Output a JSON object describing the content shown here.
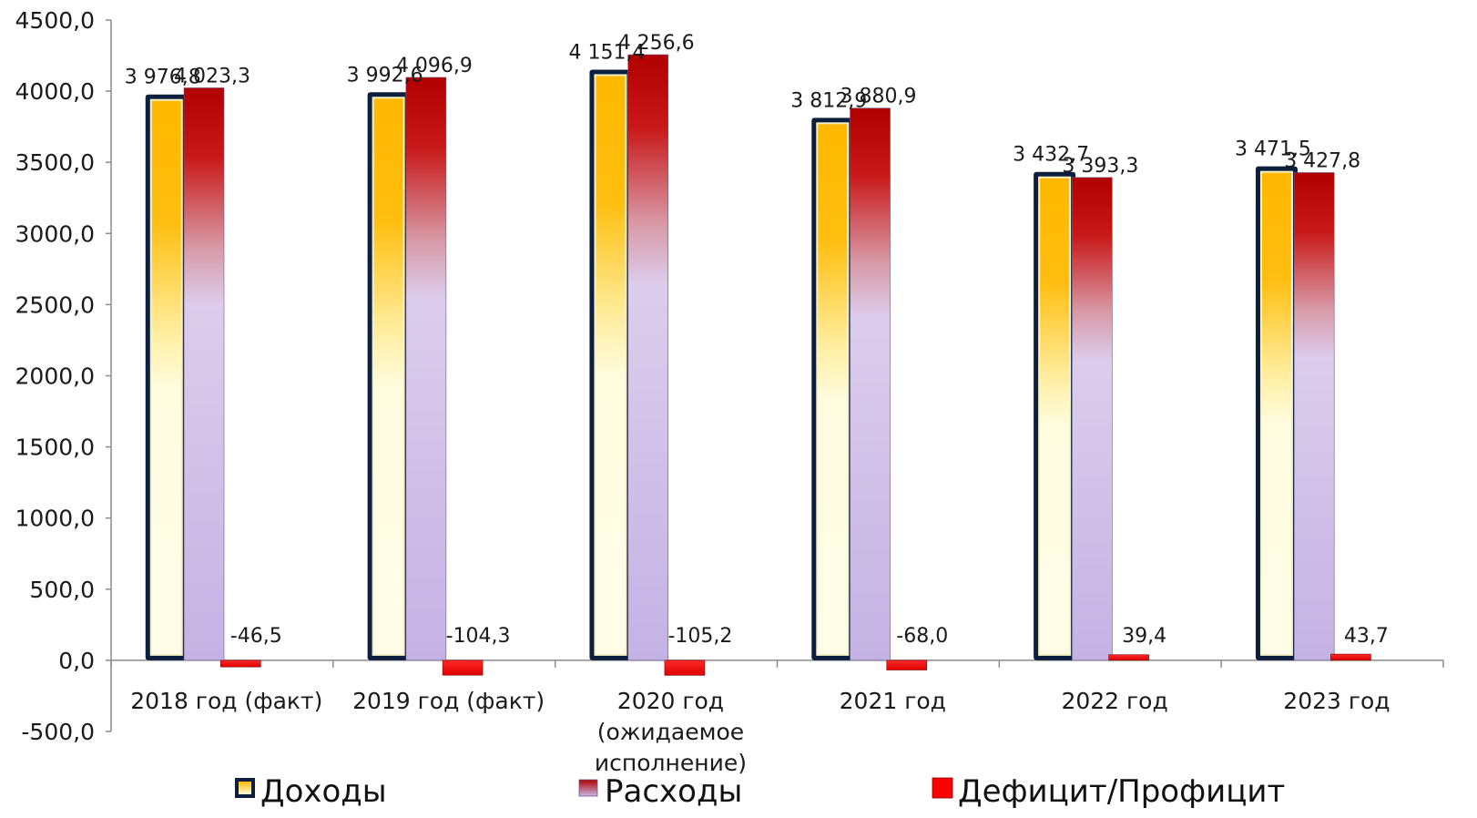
{
  "chart_data": {
    "type": "bar",
    "categories": [
      [
        "2018 год (факт)"
      ],
      [
        "2019 год (факт)"
      ],
      [
        "2020 год",
        "(ожидаемое",
        "исполнение)"
      ],
      [
        "2021 год"
      ],
      [
        "2022 год"
      ],
      [
        "2023 год"
      ]
    ],
    "series": [
      {
        "name": "Доходы",
        "values": [
          3976.8,
          3992.6,
          4151.4,
          3812.9,
          3432.7,
          3471.5
        ],
        "labels": [
          "3 976,8",
          "3 992,6",
          "4 151,4",
          "3 812,9",
          "3 432,7",
          "3 471,5"
        ]
      },
      {
        "name": "Расходы",
        "values": [
          4023.3,
          4096.9,
          4256.6,
          3880.9,
          3393.3,
          3427.8
        ],
        "labels": [
          "4 023,3",
          "4 096,9",
          "4 256,6",
          "3 880,9",
          "3 393,3",
          "3 427,8"
        ]
      },
      {
        "name": "Дефицит/Профицит",
        "values": [
          -46.5,
          -104.3,
          -105.2,
          -68.0,
          39.4,
          43.7
        ],
        "labels": [
          "-46,5",
          "-104,3",
          "-105,2",
          "-68,0",
          "39,4",
          "43,7"
        ]
      }
    ],
    "ylim": [
      -500,
      4500
    ],
    "yticks": [
      -500,
      0,
      500,
      1000,
      1500,
      2000,
      2500,
      3000,
      3500,
      4000,
      4500
    ],
    "ytick_labels": [
      "-500,0",
      "0,0",
      "500,0",
      "1000,0",
      "1500,0",
      "2000,0",
      "2500,0",
      "3000,0",
      "3500,0",
      "4000,0",
      "4500,0"
    ],
    "grid": false,
    "legend_position": "bottom",
    "colors": {
      "income_border": "#0d1f3c",
      "income_top": "#ffb800",
      "income_bottom": "#fffde0",
      "expense_top": "#b00000",
      "expense_bottom": "#c8b6e6",
      "deficit": "#ff0000"
    }
  }
}
